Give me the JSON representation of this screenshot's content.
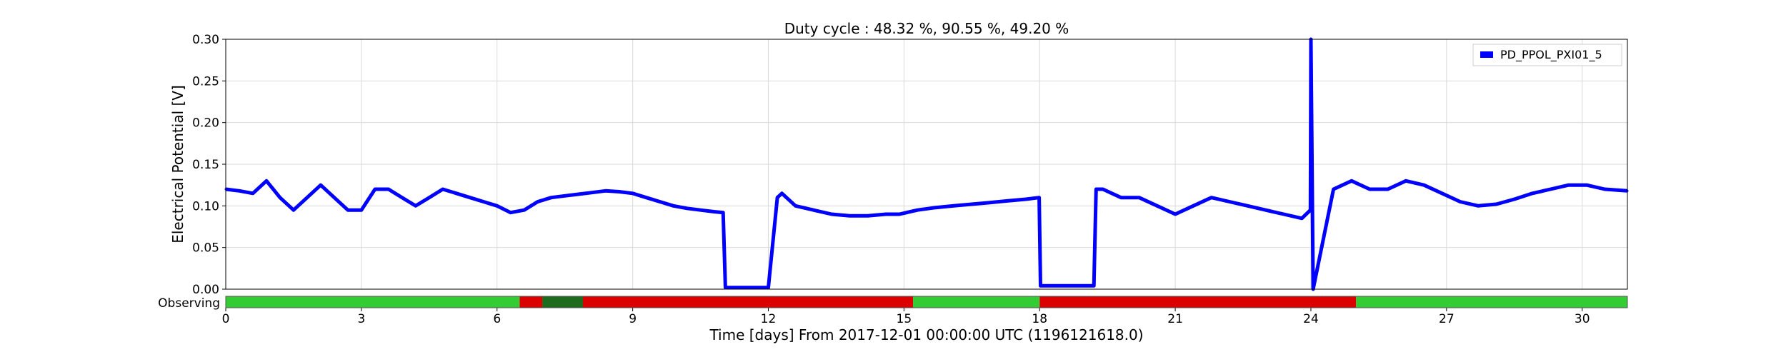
{
  "chart_data": {
    "type": "line",
    "title": "Duty cycle : 48.32 %, 90.55 %, 49.20 %",
    "xlabel": "Time [days] From 2017-12-01 00:00:00 UTC (1196121618.0)",
    "ylabel": "Electrical Potential [V]",
    "xlim": [
      0,
      31
    ],
    "ylim": [
      0.0,
      0.3
    ],
    "xticks": [
      0,
      3,
      6,
      9,
      12,
      15,
      18,
      21,
      24,
      27,
      30
    ],
    "yticks": [
      0.0,
      0.05,
      0.1,
      0.15,
      0.2,
      0.25,
      0.3
    ],
    "xtick_labels": [
      "0",
      "3",
      "6",
      "9",
      "12",
      "15",
      "18",
      "21",
      "24",
      "27",
      "30"
    ],
    "ytick_labels": [
      "0.00",
      "0.05",
      "0.10",
      "0.15",
      "0.20",
      "0.25",
      "0.30"
    ],
    "grid": true,
    "legend_position": "top-right",
    "colors": {
      "series": "#0000ff",
      "observing": "#33cc33",
      "bad": "#dd0000",
      "dark_observing": "#1e6b1e"
    },
    "series": [
      {
        "name": "PD_PPOL_PXI01_5",
        "color": "#0000ff",
        "x": [
          0,
          0.3,
          0.6,
          0.9,
          1.2,
          1.5,
          1.8,
          2.1,
          2.4,
          2.7,
          3.0,
          3.3,
          3.6,
          3.9,
          4.2,
          4.5,
          4.8,
          5.1,
          5.4,
          5.7,
          6.0,
          6.3,
          6.6,
          6.9,
          7.2,
          7.5,
          7.8,
          8.1,
          8.4,
          8.7,
          9.0,
          9.3,
          9.6,
          9.9,
          10.2,
          10.5,
          10.8,
          11.0,
          11.05,
          11.2,
          11.6,
          12.0,
          12.2,
          12.3,
          12.6,
          13.0,
          13.4,
          13.8,
          14.2,
          14.6,
          14.9,
          15.3,
          15.7,
          16.1,
          16.5,
          16.9,
          17.3,
          17.7,
          17.99,
          18.02,
          18.5,
          19.0,
          19.2,
          19.25,
          19.4,
          19.8,
          20.2,
          20.6,
          21.0,
          21.4,
          21.8,
          22.2,
          22.6,
          23.0,
          23.4,
          23.8,
          23.99,
          24.0,
          24.05,
          24.5,
          24.9,
          25.3,
          25.7,
          26.1,
          26.5,
          26.9,
          27.3,
          27.7,
          28.1,
          28.5,
          28.9,
          29.3,
          29.7,
          30.1,
          30.5,
          31.0
        ],
        "y": [
          0.12,
          0.118,
          0.115,
          0.13,
          0.11,
          0.095,
          0.11,
          0.125,
          0.11,
          0.095,
          0.095,
          0.12,
          0.12,
          0.11,
          0.1,
          0.11,
          0.12,
          0.115,
          0.11,
          0.105,
          0.1,
          0.092,
          0.095,
          0.105,
          0.11,
          0.112,
          0.114,
          0.116,
          0.118,
          0.117,
          0.115,
          0.11,
          0.105,
          0.1,
          0.097,
          0.095,
          0.093,
          0.092,
          0.002,
          0.002,
          0.002,
          0.002,
          0.11,
          0.115,
          0.1,
          0.095,
          0.09,
          0.088,
          0.088,
          0.09,
          0.09,
          0.095,
          0.098,
          0.1,
          0.102,
          0.104,
          0.106,
          0.108,
          0.11,
          0.004,
          0.004,
          0.004,
          0.004,
          0.12,
          0.12,
          0.11,
          0.11,
          0.1,
          0.09,
          0.1,
          0.11,
          0.105,
          0.1,
          0.095,
          0.09,
          0.085,
          0.095,
          0.3,
          0.0,
          0.12,
          0.13,
          0.12,
          0.12,
          0.13,
          0.125,
          0.115,
          0.105,
          0.1,
          0.102,
          0.108,
          0.115,
          0.12,
          0.125,
          0.125,
          0.12,
          0.118
        ]
      }
    ],
    "segments": {
      "label": "Observing",
      "bands": [
        {
          "start": 0.0,
          "end": 6.5,
          "state": "observing"
        },
        {
          "start": 6.5,
          "end": 7.0,
          "state": "bad"
        },
        {
          "start": 7.0,
          "end": 7.9,
          "state": "dark_observing"
        },
        {
          "start": 7.9,
          "end": 15.2,
          "state": "bad"
        },
        {
          "start": 15.2,
          "end": 18.0,
          "state": "observing"
        },
        {
          "start": 18.0,
          "end": 25.0,
          "state": "bad"
        },
        {
          "start": 25.0,
          "end": 31.0,
          "state": "observing"
        }
      ]
    }
  }
}
